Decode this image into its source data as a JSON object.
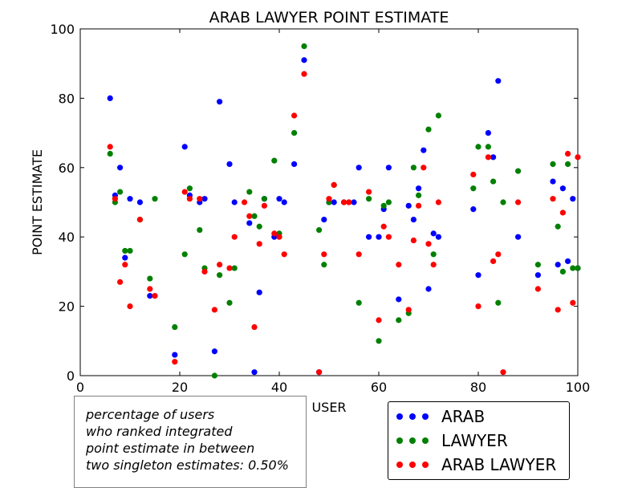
{
  "chart_data": {
    "type": "scatter",
    "title": "ARAB LAWYER POINT ESTIMATE",
    "xlabel": "USER",
    "ylabel": "POINT ESTIMATE",
    "xlim": [
      0,
      100
    ],
    "ylim": [
      0,
      100
    ],
    "xticks": [
      "0",
      "20",
      "40",
      "60",
      "80",
      "100"
    ],
    "yticks": [
      "0",
      "20",
      "40",
      "60",
      "80",
      "100"
    ],
    "grid": false,
    "series": [
      {
        "name": "ARAB",
        "color": "#0000ff",
        "x": [
          6,
          7,
          8,
          9,
          10,
          12,
          14,
          19,
          21,
          22,
          24,
          25,
          27,
          28,
          30,
          31,
          34,
          35,
          36,
          37,
          39,
          40,
          41,
          43,
          45,
          48,
          49,
          50,
          51,
          53,
          55,
          56,
          58,
          60,
          61,
          62,
          64,
          66,
          67,
          68,
          69,
          70,
          71,
          72,
          79,
          80,
          82,
          83,
          84,
          88,
          92,
          95,
          96,
          97,
          98,
          99,
          100
        ],
        "y": [
          80,
          52,
          60,
          34,
          51,
          50,
          23,
          6,
          66,
          52,
          50,
          51,
          7,
          79,
          61,
          50,
          44,
          1,
          24,
          51,
          40,
          51,
          50,
          61,
          91,
          1,
          45,
          50,
          50,
          50,
          50,
          60,
          40,
          40,
          48,
          60,
          22,
          49,
          45,
          54,
          65,
          25,
          41,
          40,
          48,
          29,
          70,
          63,
          85,
          40,
          29,
          56,
          32,
          54,
          33,
          51,
          31
        ]
      },
      {
        "name": "LAWYER",
        "color": "#008000",
        "x": [
          6,
          7,
          8,
          9,
          10,
          12,
          14,
          15,
          19,
          21,
          22,
          24,
          25,
          27,
          28,
          30,
          31,
          34,
          35,
          36,
          37,
          39,
          40,
          43,
          45,
          48,
          49,
          50,
          51,
          53,
          54,
          56,
          58,
          60,
          61,
          62,
          64,
          66,
          67,
          68,
          70,
          71,
          72,
          79,
          80,
          82,
          83,
          84,
          85,
          88,
          92,
          95,
          96,
          97,
          98,
          99,
          100
        ],
        "y": [
          64,
          50,
          53,
          36,
          36,
          45,
          28,
          51,
          14,
          35,
          54,
          42,
          31,
          0,
          29,
          21,
          31,
          53,
          46,
          43,
          51,
          62,
          41,
          70,
          95,
          42,
          32,
          50,
          55,
          50,
          50,
          21,
          51,
          10,
          49,
          50,
          16,
          18,
          60,
          52,
          71,
          35,
          75,
          54,
          66,
          66,
          56,
          21,
          50,
          59,
          32,
          61,
          43,
          30,
          61,
          31,
          31
        ]
      },
      {
        "name": "ARAB LAWYER",
        "color": "#ff0000",
        "x": [
          6,
          7,
          8,
          9,
          10,
          12,
          14,
          15,
          19,
          21,
          22,
          24,
          25,
          27,
          28,
          30,
          31,
          33,
          34,
          35,
          36,
          37,
          39,
          40,
          41,
          43,
          45,
          48,
          49,
          50,
          51,
          53,
          54,
          56,
          58,
          60,
          61,
          62,
          64,
          66,
          67,
          68,
          69,
          70,
          71,
          72,
          79,
          80,
          82,
          83,
          84,
          85,
          88,
          92,
          95,
          96,
          97,
          98,
          99,
          100
        ],
        "y": [
          66,
          51,
          27,
          32,
          20,
          45,
          25,
          23,
          4,
          53,
          51,
          51,
          30,
          19,
          32,
          31,
          40,
          50,
          46,
          14,
          38,
          49,
          41,
          40,
          35,
          75,
          87,
          1,
          35,
          51,
          55,
          50,
          50,
          35,
          53,
          16,
          43,
          40,
          32,
          19,
          39,
          49,
          60,
          38,
          32,
          50,
          58,
          20,
          63,
          33,
          35,
          1,
          50,
          25,
          51,
          19,
          47,
          64,
          21,
          63
        ]
      }
    ]
  },
  "annotation": {
    "lines": [
      "percentage of users",
      "who ranked integrated",
      "point estimate in between",
      "two singleton estimates: 0.50%"
    ]
  },
  "legend": {
    "placement": "bottom-right outside plot",
    "items": [
      {
        "label": "ARAB",
        "color": "#0000ff"
      },
      {
        "label": "LAWYER",
        "color": "#008000"
      },
      {
        "label": "ARAB LAWYER",
        "color": "#ff0000"
      }
    ]
  }
}
